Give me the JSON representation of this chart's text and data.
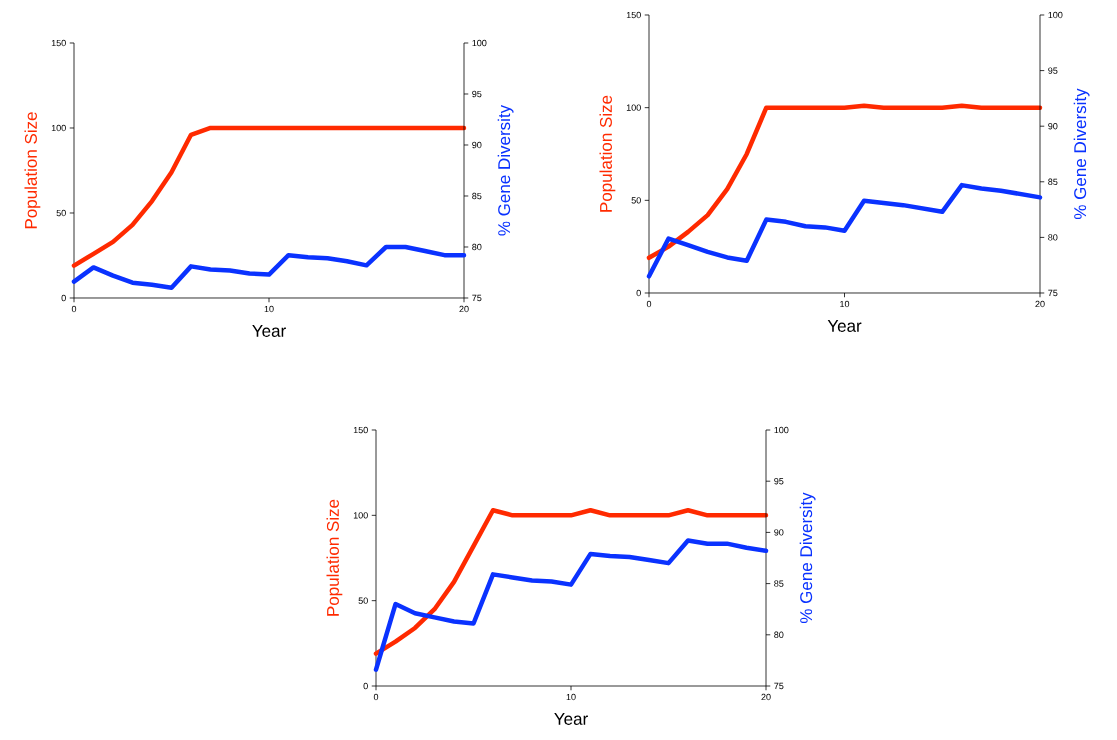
{
  "chart_data": [
    {
      "type": "line",
      "xlabel": "Year",
      "ylabel": "Population Size",
      "y2label": "% Gene Diversity",
      "x": [
        0,
        1,
        2,
        3,
        4,
        5,
        6,
        7,
        8,
        9,
        10,
        11,
        12,
        13,
        14,
        15,
        16,
        17,
        18,
        19,
        20
      ],
      "xlim": [
        0,
        20
      ],
      "xticks": [
        0,
        10,
        20
      ],
      "ylim": [
        0,
        150
      ],
      "yticks": [
        0,
        50,
        100,
        150
      ],
      "y2lim": [
        75,
        100
      ],
      "y2ticks": [
        75,
        80,
        85,
        90,
        95,
        100
      ],
      "series": [
        {
          "color": "#ff2a00",
          "values": [
            19,
            26,
            33,
            43,
            57,
            74,
            96,
            100,
            100,
            100,
            100,
            100,
            100,
            100,
            100,
            100,
            100,
            100,
            100,
            100,
            100
          ]
        },
        {
          "color": "#0a32ff",
          "axis": "y2",
          "values": [
            76.6,
            78.0,
            77.2,
            76.5,
            76.3,
            76.0,
            78.1,
            77.8,
            77.7,
            77.4,
            77.3,
            79.2,
            79.0,
            78.9,
            78.6,
            78.2,
            80.0,
            80.0,
            79.6,
            79.2,
            79.2
          ]
        }
      ]
    },
    {
      "type": "line",
      "xlabel": "Year",
      "ylabel": "Population Size",
      "y2label": "% Gene Diversity",
      "x": [
        0,
        1,
        2,
        3,
        4,
        5,
        6,
        7,
        8,
        9,
        10,
        11,
        12,
        13,
        14,
        15,
        16,
        17,
        18,
        19,
        20
      ],
      "xlim": [
        0,
        20
      ],
      "xticks": [
        0,
        10,
        20
      ],
      "ylim": [
        0,
        150
      ],
      "yticks": [
        0,
        50,
        100,
        150
      ],
      "y2lim": [
        75,
        100
      ],
      "y2ticks": [
        75,
        80,
        85,
        90,
        95,
        100
      ],
      "series": [
        {
          "color": "#ff2a00",
          "values": [
            19,
            25,
            33,
            42,
            56,
            75,
            100,
            100,
            100,
            100,
            100,
            101,
            100,
            100,
            100,
            100,
            101,
            100,
            100,
            100,
            100
          ]
        },
        {
          "color": "#0a32ff",
          "axis": "y2",
          "values": [
            76.5,
            79.9,
            79.3,
            78.7,
            78.2,
            77.9,
            81.6,
            81.4,
            81.0,
            80.9,
            80.6,
            83.3,
            83.1,
            82.9,
            82.6,
            82.3,
            84.7,
            84.4,
            84.2,
            83.9,
            83.6
          ]
        }
      ]
    },
    {
      "type": "line",
      "xlabel": "Year",
      "ylabel": "Population Size",
      "y2label": "% Gene Diversity",
      "x": [
        0,
        1,
        2,
        3,
        4,
        5,
        6,
        7,
        8,
        9,
        10,
        11,
        12,
        13,
        14,
        15,
        16,
        17,
        18,
        19,
        20
      ],
      "xlim": [
        0,
        20
      ],
      "xticks": [
        0,
        10,
        20
      ],
      "ylim": [
        0,
        150
      ],
      "yticks": [
        0,
        50,
        100,
        150
      ],
      "y2lim": [
        75,
        100
      ],
      "y2ticks": [
        75,
        80,
        85,
        90,
        95,
        100
      ],
      "series": [
        {
          "color": "#ff2a00",
          "values": [
            19,
            26,
            34,
            45,
            61,
            82,
            103,
            100,
            100,
            100,
            100,
            103,
            100,
            100,
            100,
            100,
            103,
            100,
            100,
            100,
            100
          ]
        },
        {
          "color": "#0a32ff",
          "axis": "y2",
          "values": [
            76.6,
            83.0,
            82.1,
            81.7,
            81.3,
            81.1,
            85.9,
            85.6,
            85.3,
            85.2,
            84.9,
            87.9,
            87.7,
            87.6,
            87.3,
            87.0,
            89.2,
            88.9,
            88.9,
            88.5,
            88.2
          ]
        }
      ]
    }
  ]
}
